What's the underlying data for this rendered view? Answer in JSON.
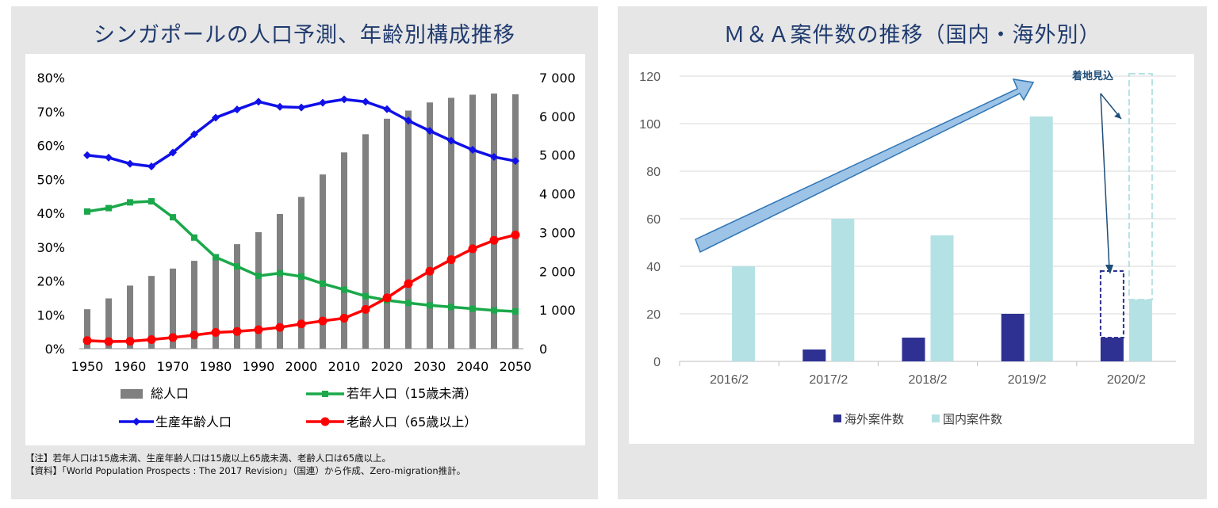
{
  "left_panel": {
    "title": "シンガポールの人口予測、年齢別構成推移",
    "legend": {
      "total": "総人口",
      "young": "若年人口（15歳未満）",
      "working": "生産年齢人口",
      "elderly": "老齢人口（65歳以上）"
    },
    "note1": "【注】若年人口は15歳未満、生産年齢人口は15歳以上65歳未満、老齢人口は65歳以上。",
    "note2": "【資料】「World Population Prospects : The 2017 Revision」（国連）から作成、Zero-migration推計。"
  },
  "right_panel": {
    "title": "Ｍ＆Ａ案件数の推移（国内・海外別）",
    "annotation": "着地見込",
    "legend": {
      "overseas": "海外案件数",
      "domestic": "国内案件数"
    }
  },
  "chart_data": [
    {
      "type": "bar+line",
      "title": "シンガポールの人口予測、年齢別構成推移",
      "x": [
        1950,
        1955,
        1960,
        1965,
        1970,
        1975,
        1980,
        1985,
        1990,
        1995,
        2000,
        2005,
        2010,
        2015,
        2020,
        2025,
        2030,
        2035,
        2040,
        2045,
        2050
      ],
      "x_tick_labels": [
        "1950",
        "1960",
        "1970",
        "1980",
        "1990",
        "2000",
        "2010",
        "2020",
        "2030",
        "2040",
        "2050"
      ],
      "y_left": {
        "range": [
          0,
          80
        ],
        "ticks": [
          "0%",
          "10%",
          "20%",
          "30%",
          "40%",
          "50%",
          "60%",
          "70%",
          "80%"
        ]
      },
      "y_right": {
        "range": [
          0,
          7000
        ],
        "ticks": [
          "0",
          "1 000",
          "2 000",
          "3 000",
          "4 000",
          "5 000",
          "6 000",
          "7 000"
        ]
      },
      "series": [
        {
          "name": "総人口",
          "type": "bar",
          "axis": "right",
          "color": "#808080",
          "values": [
            1020,
            1300,
            1630,
            1880,
            2070,
            2270,
            2420,
            2700,
            3010,
            3480,
            3920,
            4500,
            5070,
            5540,
            5940,
            6150,
            6360,
            6480,
            6560,
            6590,
            6570
          ]
        },
        {
          "name": "若年人口（15歳未満）",
          "type": "line",
          "axis": "left",
          "color": "#1aa84a",
          "values": [
            40.5,
            41.5,
            43.2,
            43.5,
            38.8,
            32.8,
            27,
            24.3,
            21.5,
            22.3,
            21.3,
            19.2,
            17.4,
            15.5,
            14.3,
            13.5,
            12.8,
            12.3,
            11.8,
            11.3,
            11
          ]
        },
        {
          "name": "生産年齢人口",
          "type": "line",
          "axis": "left",
          "color": "#1010e8",
          "values": [
            57.1,
            56.4,
            54.6,
            53.8,
            57.9,
            63.3,
            68.2,
            70.6,
            72.9,
            71.4,
            71.2,
            72.6,
            73.6,
            72.9,
            70.7,
            67.3,
            64.3,
            61.4,
            58.7,
            56.6,
            55.4
          ]
        },
        {
          "name": "老齢人口（65歳以上）",
          "type": "line",
          "axis": "left",
          "color": "#ff0000",
          "values": [
            2.4,
            2.1,
            2.2,
            2.7,
            3.3,
            4,
            4.8,
            5.1,
            5.6,
            6.3,
            7.3,
            8.2,
            9,
            11.6,
            15,
            19.2,
            22.9,
            26.3,
            29.5,
            32,
            33.6
          ]
        }
      ]
    },
    {
      "type": "bar",
      "title": "Ｍ＆Ａ案件数の推移（国内・海外別）",
      "categories": [
        "2016/2",
        "2017/2",
        "2018/2",
        "2019/2",
        "2020/2"
      ],
      "ylim": [
        0,
        120
      ],
      "y_ticks": [
        0,
        20,
        40,
        60,
        80,
        100,
        120
      ],
      "series": [
        {
          "name": "海外案件数",
          "color": "#2e3192",
          "values": [
            0,
            5,
            10,
            20,
            10
          ]
        },
        {
          "name": "国内案件数",
          "color": "#b4e1e4",
          "values": [
            40,
            60,
            53,
            103,
            26
          ]
        }
      ],
      "forecast": {
        "category": "2020/2",
        "overseas": 38,
        "domestic": 121
      }
    }
  ]
}
